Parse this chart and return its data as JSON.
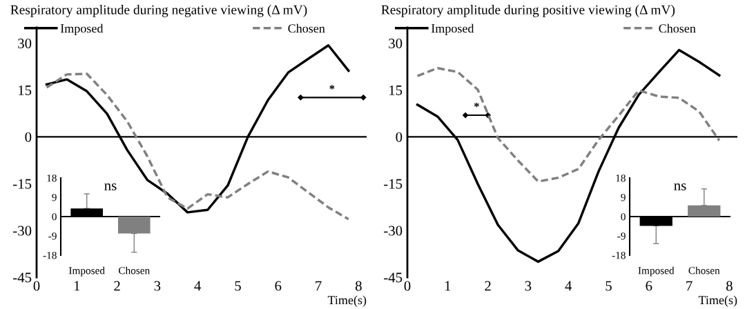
{
  "chart_data": [
    {
      "type": "line",
      "title": "Respiratory amplitude during negative viewing (Δ mV)",
      "xlabel": "Time(s)",
      "x": [
        0.25,
        0.75,
        1.25,
        1.75,
        2.25,
        2.75,
        3.25,
        3.75,
        4.25,
        4.75,
        5.25,
        5.75,
        6.25,
        6.75,
        7.25,
        7.75
      ],
      "series": [
        {
          "name": "Imposed",
          "color": "#000000",
          "line_style": "solid",
          "values": [
            16.8,
            18.4,
            14.6,
            7.4,
            -4.2,
            -13.8,
            -18.2,
            -24.2,
            -23.4,
            -15.6,
            0,
            11.8,
            20.6,
            25,
            29.3,
            21.2
          ]
        },
        {
          "name": "Chosen",
          "color": "#808080",
          "line_style": "dashed",
          "values": [
            15.8,
            20,
            20.2,
            13.4,
            5,
            -6.2,
            -19.4,
            -23,
            -18.4,
            -19.4,
            -15.1,
            -11.1,
            -13,
            -17.8,
            -22.6,
            -26.4
          ]
        }
      ],
      "xlim": [
        0,
        8.2
      ],
      "xticks": [
        0,
        1,
        2,
        3,
        4,
        5,
        6,
        7,
        8
      ],
      "ylim": [
        -45,
        35
      ],
      "yticks": [
        -45,
        -30,
        -15,
        0,
        15,
        30
      ],
      "ref_lines": [
        {
          "axis": "y",
          "value": 0,
          "color": "#000000"
        }
      ],
      "annotations": [
        "*"
      ],
      "legend": "top",
      "grid": false,
      "marker": "none"
    },
    {
      "type": "bar",
      "categories": [
        "Imposed",
        "Chosen"
      ],
      "values": [
        3.8,
        -7.9
      ],
      "colors": [
        "#000000",
        "#808080"
      ],
      "errors": [
        [
          3.8,
          10.6
        ],
        [
          -16.6,
          -7.9
        ]
      ],
      "ylim": [
        -18,
        18
      ],
      "yticks": [
        -18,
        -9,
        0,
        9,
        18
      ],
      "ref_lines": [
        {
          "axis": "y",
          "value": 0,
          "color": "#000000"
        }
      ],
      "annotations": [
        "ns"
      ],
      "grid": false
    },
    {
      "type": "line",
      "title": "Respiratory amplitude during positive viewing (Δ mV)",
      "xlabel": "Time(s)",
      "x": [
        0.25,
        0.75,
        1.25,
        1.75,
        2.25,
        2.75,
        3.25,
        3.75,
        4.25,
        4.75,
        5.25,
        5.75,
        6.25,
        6.75,
        7.25,
        7.75
      ],
      "series": [
        {
          "name": "Imposed",
          "color": "#000000",
          "line_style": "solid",
          "values": [
            10.3,
            6.5,
            -1,
            -15.1,
            -28.2,
            -36.4,
            -40,
            -36.6,
            -27.7,
            -11.1,
            2.9,
            13.5,
            20.7,
            27.8,
            24,
            19.7
          ]
        },
        {
          "name": "Chosen",
          "color": "#808080",
          "line_style": "dashed",
          "values": [
            19.5,
            22,
            20.8,
            15.1,
            -0.4,
            -7.6,
            -14.3,
            -13.1,
            -10.3,
            -1,
            6.8,
            14.9,
            12.9,
            12.5,
            8.1,
            -1.2
          ]
        }
      ],
      "xlim": [
        0,
        8.2
      ],
      "xticks": [
        0,
        1,
        2,
        3,
        4,
        5,
        6,
        7,
        8
      ],
      "ylim": [
        -45,
        35
      ],
      "yticks": [
        -45,
        -30,
        -15,
        0,
        15,
        30
      ],
      "ref_lines": [
        {
          "axis": "y",
          "value": 0,
          "color": "#000000"
        }
      ],
      "annotations": [
        "*"
      ],
      "legend": "top",
      "grid": false,
      "marker": "none"
    },
    {
      "type": "bar",
      "categories": [
        "Imposed",
        "Chosen"
      ],
      "values": [
        -4.3,
        5.2
      ],
      "colors": [
        "#000000",
        "#808080"
      ],
      "errors": [
        [
          -12.6,
          -4.3
        ],
        [
          5.2,
          12.9
        ]
      ],
      "ylim": [
        -18,
        18
      ],
      "yticks": [
        -18,
        -9,
        0,
        9,
        18
      ],
      "ref_lines": [
        {
          "axis": "y",
          "value": 0,
          "color": "#000000"
        }
      ],
      "annotations": [
        "ns"
      ],
      "grid": false
    }
  ]
}
